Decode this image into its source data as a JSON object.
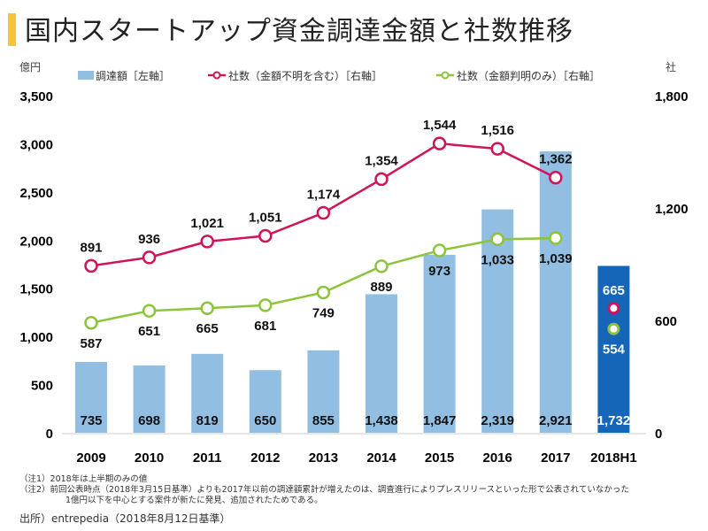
{
  "chart_data": {
    "type": "bar+line",
    "title": "国内スタートアップ資金調達金額と社数推移",
    "categories": [
      "2009",
      "2010",
      "2011",
      "2012",
      "2013",
      "2014",
      "2015",
      "2016",
      "2017",
      "2018H1"
    ],
    "left_axis": {
      "unit": "億円",
      "range": [
        0,
        3500
      ],
      "ticks": [
        "0",
        "500",
        "1,000",
        "1,500",
        "2,000",
        "2,500",
        "3,000",
        "3,500"
      ]
    },
    "right_axis": {
      "unit": "社",
      "range": [
        0,
        1800
      ],
      "ticks": [
        "0",
        "600",
        "1,200",
        "1,800"
      ]
    },
    "grid": false,
    "legend_placement": "top",
    "series": [
      {
        "name": "調達額［左軸］",
        "type": "bar",
        "axis": "left",
        "color": "#92bfe1",
        "highlight_color": "#1565b8",
        "values": [
          735,
          698,
          819,
          650,
          855,
          1438,
          1847,
          2319,
          2921,
          1732
        ],
        "labels": [
          "735",
          "698",
          "819",
          "650",
          "855",
          "1,438",
          "1,847",
          "2,319",
          "2,921",
          "1,732"
        ]
      },
      {
        "name": "社数（金額不明を含む）［右軸］",
        "type": "line",
        "axis": "right",
        "color": "#d0145a",
        "values": [
          891,
          936,
          1021,
          1051,
          1174,
          1354,
          1544,
          1516,
          1362,
          665
        ],
        "labels": [
          "891",
          "936",
          "1,021",
          "1,051",
          "1,174",
          "1,354",
          "1,544",
          "1,516",
          "1,362",
          "665"
        ]
      },
      {
        "name": "社数（金額判明のみ）［右軸］",
        "type": "line",
        "axis": "right",
        "color": "#8cc43c",
        "values": [
          587,
          651,
          665,
          681,
          749,
          889,
          973,
          1033,
          1039,
          554
        ],
        "labels": [
          "587",
          "651",
          "665",
          "681",
          "749",
          "889",
          "973",
          "1,033",
          "1,039",
          "554"
        ]
      }
    ]
  },
  "notes": [
    "（注1）2018年は上半期のみの値",
    "（注2）前回公表時点（2018年3月15日基準）よりも2017年以前の調達額累計が増えたのは、調査進行によりプレスリリースといった形で公表されていなかった",
    "1億円以下を中心とする案件が新たに発見、追加されたためである。"
  ],
  "source": "出所）entrepedia（2018年8月12日基準）"
}
